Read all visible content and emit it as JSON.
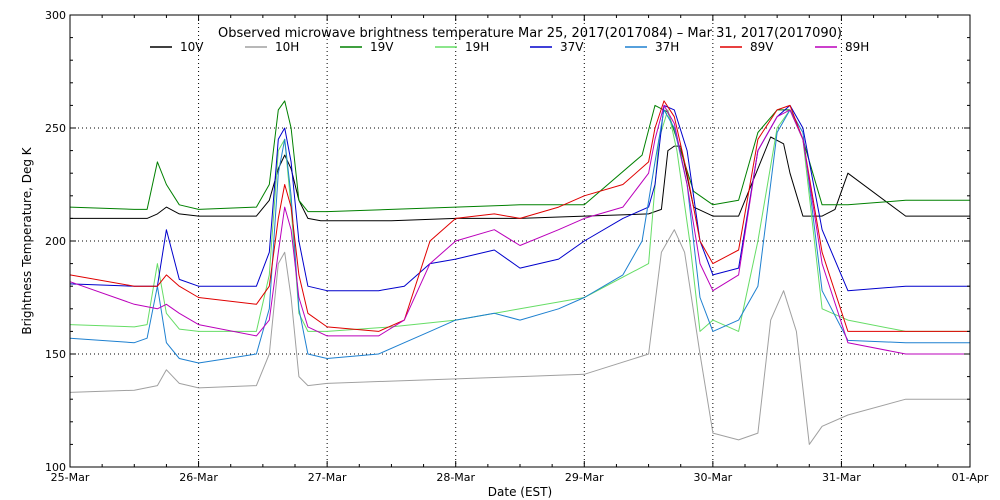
{
  "chart_data": {
    "type": "line",
    "title": "Observed microwave brightness temperature Mar 25, 2017(2017084) – Mar 31, 2017(2017090)",
    "xlabel": "Date (EST)",
    "ylabel": "Brightness Temperature, Deg K",
    "ylim": [
      100,
      300
    ],
    "xlim": [
      0,
      7
    ],
    "x_tick_labels": [
      "25-Mar",
      "26-Mar",
      "27-Mar",
      "28-Mar",
      "29-Mar",
      "30-Mar",
      "31-Mar",
      "01-Apr"
    ],
    "y_ticks": [
      100,
      150,
      200,
      250,
      300
    ],
    "grid": true,
    "legend_position": "top",
    "x_units": "days since 25-Mar 00:00 EST",
    "series": [
      {
        "name": "10V",
        "color": "#000000",
        "x": [
          0,
          0.6,
          0.68,
          0.75,
          0.85,
          1.0,
          1.45,
          1.55,
          1.62,
          1.67,
          1.72,
          1.78,
          1.85,
          1.95,
          2.5,
          3.0,
          3.5,
          4.0,
          4.5,
          4.6,
          4.65,
          4.7,
          4.75,
          4.85,
          5.0,
          5.2,
          5.35,
          5.45,
          5.55,
          5.6,
          5.7,
          5.85,
          5.95,
          6.05,
          6.5,
          7.0
        ],
        "values": [
          210,
          210,
          212,
          215,
          212,
          211,
          211,
          218,
          232,
          238,
          232,
          218,
          210,
          209,
          209,
          210,
          210,
          211,
          212,
          214,
          240,
          242,
          242,
          215,
          211,
          211,
          232,
          246,
          243,
          230,
          211,
          211,
          214,
          230,
          211,
          211
        ]
      },
      {
        "name": "10H",
        "color": "#a0a0a0",
        "x": [
          0,
          0.5,
          0.68,
          0.75,
          0.85,
          1.0,
          1.45,
          1.55,
          1.62,
          1.67,
          1.72,
          1.78,
          1.85,
          2.0,
          2.5,
          3.0,
          3.5,
          4.0,
          4.5,
          4.6,
          4.7,
          4.78,
          4.9,
          5.0,
          5.2,
          5.35,
          5.45,
          5.55,
          5.65,
          5.75,
          5.85,
          6.05,
          6.5,
          7.0
        ],
        "values": [
          133,
          134,
          136,
          143,
          137,
          135,
          136,
          150,
          190,
          195,
          175,
          140,
          136,
          137,
          138,
          139,
          140,
          141,
          150,
          195,
          205,
          195,
          150,
          115,
          112,
          115,
          165,
          178,
          160,
          110,
          118,
          123,
          130,
          130
        ]
      },
      {
        "name": "19V",
        "color": "#008000",
        "x": [
          0,
          0.5,
          0.6,
          0.68,
          0.75,
          0.85,
          1.0,
          1.45,
          1.55,
          1.62,
          1.67,
          1.72,
          1.78,
          1.85,
          2.0,
          2.5,
          3.0,
          3.5,
          4.0,
          4.45,
          4.55,
          4.65,
          4.75,
          4.85,
          5.0,
          5.2,
          5.35,
          5.5,
          5.6,
          5.7,
          5.85,
          6.05,
          6.5,
          7.0
        ],
        "values": [
          215,
          214,
          214,
          235,
          225,
          216,
          214,
          215,
          225,
          258,
          262,
          250,
          218,
          213,
          213,
          214,
          215,
          216,
          216,
          238,
          260,
          257,
          240,
          222,
          216,
          218,
          248,
          258,
          258,
          245,
          216,
          216,
          218,
          218
        ]
      },
      {
        "name": "19H",
        "color": "#66dd66",
        "x": [
          0,
          0.5,
          0.6,
          0.68,
          0.75,
          0.85,
          1.0,
          1.45,
          1.55,
          1.62,
          1.67,
          1.72,
          1.78,
          1.85,
          2.0,
          2.5,
          3.0,
          3.5,
          4.0,
          4.5,
          4.58,
          4.65,
          4.72,
          4.82,
          4.9,
          5.0,
          5.2,
          5.35,
          5.5,
          5.6,
          5.7,
          5.85,
          6.05,
          6.5,
          7.0
        ],
        "values": [
          163,
          162,
          163,
          190,
          168,
          161,
          160,
          160,
          185,
          240,
          245,
          215,
          168,
          160,
          160,
          162,
          165,
          170,
          175,
          190,
          245,
          258,
          240,
          200,
          160,
          165,
          160,
          200,
          250,
          258,
          245,
          170,
          165,
          160,
          160
        ]
      },
      {
        "name": "37V",
        "color": "#0000cc",
        "x": [
          0,
          0.5,
          0.68,
          0.75,
          0.85,
          1.0,
          1.45,
          1.55,
          1.62,
          1.67,
          1.72,
          1.78,
          1.85,
          2.0,
          2.4,
          2.6,
          2.8,
          3.0,
          3.3,
          3.5,
          3.8,
          4.0,
          4.3,
          4.5,
          4.55,
          4.62,
          4.7,
          4.8,
          4.9,
          5.0,
          5.2,
          5.35,
          5.5,
          5.6,
          5.7,
          5.85,
          6.05,
          6.5,
          7.0
        ],
        "values": [
          181,
          180,
          180,
          205,
          183,
          180,
          180,
          195,
          245,
          250,
          235,
          200,
          180,
          178,
          178,
          180,
          190,
          192,
          196,
          188,
          192,
          200,
          210,
          215,
          225,
          260,
          258,
          240,
          200,
          185,
          188,
          240,
          255,
          260,
          250,
          205,
          178,
          180,
          180
        ]
      },
      {
        "name": "37H",
        "color": "#1e80d0",
        "x": [
          0,
          0.5,
          0.6,
          0.68,
          0.75,
          0.85,
          1.0,
          1.45,
          1.55,
          1.62,
          1.67,
          1.72,
          1.78,
          1.85,
          2.0,
          2.4,
          2.6,
          2.8,
          3.0,
          3.3,
          3.5,
          3.8,
          4.0,
          4.3,
          4.45,
          4.55,
          4.62,
          4.7,
          4.8,
          4.9,
          5.0,
          5.2,
          5.35,
          5.5,
          5.6,
          5.7,
          5.85,
          6.05,
          6.5,
          7.0
        ],
        "values": [
          157,
          155,
          157,
          180,
          155,
          148,
          146,
          150,
          170,
          230,
          245,
          220,
          170,
          150,
          148,
          150,
          155,
          160,
          165,
          168,
          165,
          170,
          175,
          185,
          200,
          235,
          258,
          250,
          225,
          175,
          160,
          165,
          180,
          248,
          258,
          248,
          178,
          156,
          155,
          155
        ]
      },
      {
        "name": "89V",
        "color": "#e00000",
        "x": [
          0,
          0.5,
          0.68,
          0.75,
          0.85,
          1.0,
          1.45,
          1.55,
          1.62,
          1.67,
          1.72,
          1.78,
          1.85,
          2.0,
          2.4,
          2.6,
          2.8,
          3.0,
          3.3,
          3.5,
          3.8,
          4.0,
          4.3,
          4.5,
          4.55,
          4.62,
          4.7,
          4.8,
          4.9,
          5.0,
          5.2,
          5.35,
          5.5,
          5.6,
          5.7,
          5.85,
          6.05,
          6.5,
          7.0
        ],
        "values": [
          185,
          180,
          180,
          185,
          180,
          175,
          172,
          180,
          210,
          225,
          215,
          185,
          168,
          162,
          160,
          165,
          200,
          210,
          212,
          210,
          215,
          220,
          225,
          235,
          250,
          262,
          255,
          230,
          200,
          190,
          196,
          245,
          258,
          260,
          245,
          195,
          160,
          160,
          160
        ]
      },
      {
        "name": "89H",
        "color": "#bb00bb",
        "x": [
          0,
          0.5,
          0.68,
          0.75,
          0.85,
          1.0,
          1.45,
          1.55,
          1.62,
          1.67,
          1.72,
          1.78,
          1.85,
          2.0,
          2.4,
          2.6,
          2.8,
          3.0,
          3.3,
          3.5,
          3.8,
          4.0,
          4.3,
          4.5,
          4.55,
          4.62,
          4.7,
          4.8,
          4.9,
          5.0,
          5.2,
          5.35,
          5.5,
          5.6,
          5.7,
          5.85,
          6.05,
          6.5,
          7.0
        ],
        "values": [
          182,
          172,
          170,
          172,
          168,
          163,
          158,
          165,
          195,
          215,
          205,
          175,
          162,
          158,
          158,
          165,
          190,
          200,
          205,
          198,
          205,
          210,
          215,
          230,
          245,
          260,
          252,
          225,
          190,
          178,
          185,
          240,
          255,
          258,
          245,
          190,
          155,
          150,
          150
        ]
      }
    ]
  }
}
